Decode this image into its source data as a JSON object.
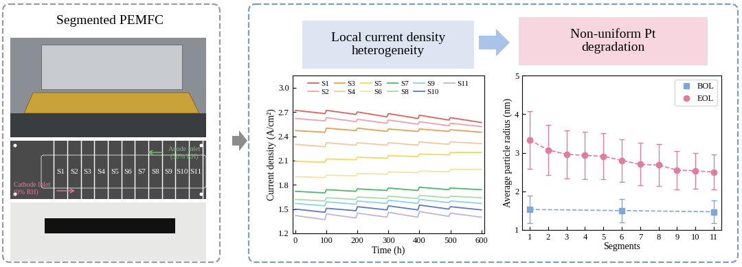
{
  "left_panel": {
    "title": "Segmented PEMFC",
    "segments": [
      "S1",
      "S2",
      "S3",
      "S4",
      "S5",
      "S6",
      "S7",
      "S8",
      "S9",
      "S10",
      "S11"
    ],
    "anode_inlet": "Anode Inlet\n(50% RH)",
    "cathode_inlet": "Cathode Inlet\n(0% RH)"
  },
  "right_panel": {
    "headers": [
      "Local current density\nheterogeneity",
      "Non-uniform Pt\ndegradation"
    ]
  },
  "chart_data": [
    {
      "type": "line",
      "xlabel": "Time (h)",
      "ylabel": "Current density (A/cm²)",
      "x": [
        0,
        95,
        100,
        195,
        200,
        295,
        300,
        395,
        400,
        495,
        500,
        600
      ],
      "xlim": [
        -10,
        610
      ],
      "xticks": [
        0,
        100,
        200,
        300,
        400,
        500,
        600
      ],
      "ylim": [
        1.2,
        3.15
      ],
      "yticks": [
        1.2,
        1.5,
        1.8,
        2.1,
        2.4,
        2.7,
        {
          "value": 3,
          "label": "3.0"
        }
      ],
      "legend": "upper center",
      "series": [
        {
          "name": "S1",
          "color": "#e0605a",
          "values": [
            2.72,
            2.68,
            2.72,
            2.67,
            2.7,
            2.64,
            2.68,
            2.62,
            2.66,
            2.6,
            2.63,
            2.57
          ]
        },
        {
          "name": "S2",
          "color": "#f0a0a8",
          "values": [
            2.62,
            2.59,
            2.63,
            2.58,
            2.61,
            2.56,
            2.6,
            2.55,
            2.58,
            2.53,
            2.56,
            2.52
          ]
        },
        {
          "name": "S3",
          "color": "#e8a050",
          "values": [
            2.47,
            2.45,
            2.5,
            2.47,
            2.5,
            2.46,
            2.49,
            2.46,
            2.49,
            2.46,
            2.48,
            2.45
          ]
        },
        {
          "name": "S4",
          "color": "#f3c8a0",
          "values": [
            2.3,
            2.27,
            2.32,
            2.29,
            2.32,
            2.29,
            2.32,
            2.29,
            2.33,
            2.3,
            2.33,
            2.31
          ]
        },
        {
          "name": "S5",
          "color": "#f5d85a",
          "values": [
            2.09,
            2.08,
            2.12,
            2.11,
            2.14,
            2.13,
            2.16,
            2.15,
            2.18,
            2.17,
            2.2,
            2.2
          ]
        },
        {
          "name": "S6",
          "color": "#f2e4a0",
          "values": [
            1.9,
            1.89,
            1.92,
            1.91,
            1.94,
            1.93,
            1.96,
            1.95,
            1.97,
            1.96,
            1.99,
            1.99
          ]
        },
        {
          "name": "S7",
          "color": "#4cb86a",
          "values": [
            1.72,
            1.7,
            1.74,
            1.72,
            1.75,
            1.73,
            1.76,
            1.73,
            1.77,
            1.74,
            1.76,
            1.74
          ]
        },
        {
          "name": "S8",
          "color": "#a8dca8",
          "values": [
            1.62,
            1.6,
            1.64,
            1.62,
            1.65,
            1.63,
            1.66,
            1.63,
            1.67,
            1.64,
            1.66,
            1.64
          ]
        },
        {
          "name": "S9",
          "color": "#8fd0ee",
          "values": [
            1.57,
            1.54,
            1.59,
            1.56,
            1.6,
            1.57,
            1.61,
            1.57,
            1.62,
            1.58,
            1.6,
            1.57
          ]
        },
        {
          "name": "S10",
          "color": "#5a78c8",
          "values": [
            1.5,
            1.46,
            1.51,
            1.48,
            1.53,
            1.49,
            1.54,
            1.49,
            1.55,
            1.5,
            1.53,
            1.49
          ]
        },
        {
          "name": "S11",
          "color": "#c0b4dc",
          "values": [
            1.42,
            1.37,
            1.44,
            1.39,
            1.45,
            1.4,
            1.46,
            1.4,
            1.47,
            1.41,
            1.45,
            1.4
          ]
        }
      ]
    },
    {
      "type": "scatter",
      "xlabel": "Segments",
      "ylabel": "Average particle radius (nm)",
      "xlim": [
        0.6,
        11.4
      ],
      "xticks": [
        1,
        2,
        3,
        4,
        5,
        6,
        7,
        8,
        9,
        10,
        11
      ],
      "ylim": [
        1,
        5
      ],
      "yticks": [
        1,
        2,
        3,
        4,
        5
      ],
      "legend": "upper right",
      "series": [
        {
          "name": "BOL",
          "color": "#7ba7d9",
          "marker": "square",
          "line_style": "dashed",
          "x": [
            1,
            6,
            11
          ],
          "values": [
            1.53,
            1.5,
            1.47
          ],
          "errors": [
            0.35,
            0.3,
            0.3
          ]
        },
        {
          "name": "EOL",
          "color": "#e27ba0",
          "marker": "circle",
          "line_style": "dashed",
          "x": [
            1,
            2,
            3,
            4,
            5,
            6,
            7,
            8,
            9,
            10,
            11
          ],
          "values": [
            3.33,
            3.07,
            2.96,
            2.93,
            2.91,
            2.8,
            2.7,
            2.68,
            2.55,
            2.53,
            2.5
          ],
          "errors": [
            0.75,
            0.65,
            0.62,
            0.62,
            0.6,
            0.55,
            0.55,
            0.55,
            0.5,
            0.47,
            0.45
          ]
        }
      ]
    }
  ]
}
